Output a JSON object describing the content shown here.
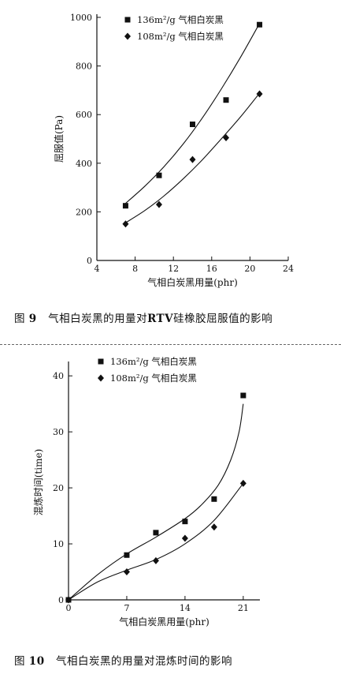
{
  "figure9": {
    "caption": {
      "prefix": "图",
      "number": "9",
      "text_a": "气相白炭黑的用量对",
      "bold": "RTV",
      "text_b": "硅橡胶屈服值的影响"
    },
    "chart_data": {
      "type": "scatter",
      "xlabel": "气相白炭黑用量(phr)",
      "ylabel": "屈服值(Pa)",
      "xlim": [
        4,
        24
      ],
      "ylim": [
        0,
        1000
      ],
      "xticks": [
        4,
        8,
        12,
        16,
        20,
        24
      ],
      "yticks": [
        0,
        200,
        400,
        600,
        800,
        1000
      ],
      "xticklabels": [
        "4",
        "8",
        "12",
        "16",
        "20",
        "24"
      ],
      "yticklabels": [
        "0",
        "200",
        "400",
        "600",
        "800",
        "1000"
      ],
      "series": [
        {
          "name": "136m²/g 气相白炭黑",
          "marker": "square",
          "x": [
            7,
            10.5,
            14,
            17.5,
            21
          ],
          "y": [
            225,
            350,
            560,
            660,
            970
          ],
          "fit_x": [
            7,
            9,
            11,
            13,
            15,
            17,
            19,
            21
          ],
          "fit_y": [
            235,
            305,
            385,
            478,
            585,
            705,
            835,
            975
          ]
        },
        {
          "name": "108m²/g 气相白炭黑",
          "marker": "diamond",
          "x": [
            7,
            10.5,
            14,
            17.5,
            21
          ],
          "y": [
            150,
            230,
            415,
            505,
            685
          ],
          "fit_x": [
            7,
            9,
            11,
            13,
            15,
            17,
            19,
            21
          ],
          "fit_y": [
            155,
            205,
            265,
            335,
            413,
            500,
            590,
            688
          ]
        }
      ],
      "legend": "top-left"
    }
  },
  "figure10": {
    "caption": {
      "prefix": "图",
      "number": "10",
      "text": "气相白炭黑的用量对混炼时间的影响"
    },
    "chart_data": {
      "type": "scatter",
      "xlabel": "气相白炭黑用量(phr)",
      "ylabel": "混炼时间(time)",
      "xlim": [
        0,
        23
      ],
      "ylim": [
        0,
        42
      ],
      "xticks": [
        0,
        7,
        14,
        21
      ],
      "yticks": [
        0,
        10,
        20,
        30,
        40
      ],
      "xticklabels": [
        "0",
        "7",
        "14",
        "21"
      ],
      "yticklabels": [
        "0",
        "10",
        "20",
        "30",
        "40"
      ],
      "series": [
        {
          "name": "136m²/g 气相白炭黑",
          "marker": "square",
          "x": [
            0,
            7,
            10.5,
            14,
            17.5,
            21
          ],
          "y": [
            0,
            8,
            12,
            14,
            18,
            36.5
          ],
          "fit_x": [
            0,
            3.5,
            7,
            10.5,
            14,
            16,
            18,
            19.5,
            20.5,
            21
          ],
          "fit_y": [
            0,
            4.5,
            8.2,
            11.2,
            14.5,
            17,
            20.5,
            25,
            30,
            35
          ]
        },
        {
          "name": "108m²/g 气相白炭黑",
          "marker": "diamond",
          "x": [
            0,
            7,
            10.5,
            14,
            17.5,
            21
          ],
          "y": [
            0,
            5,
            7,
            11,
            13,
            20.8
          ],
          "fit_x": [
            0,
            3.5,
            7,
            10.5,
            14,
            17.5,
            21
          ],
          "fit_y": [
            0,
            3.2,
            5.3,
            7.2,
            10,
            14.2,
            20.8
          ]
        }
      ],
      "legend": "top-left"
    }
  }
}
